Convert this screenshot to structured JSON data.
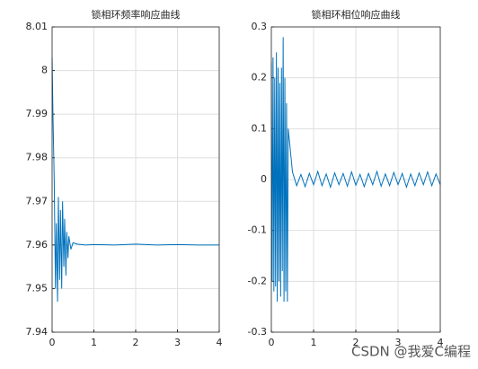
{
  "chart_data": [
    {
      "type": "line",
      "title": "锁相环频率响应曲线",
      "color": "#0072bd",
      "grid": true,
      "y_scale_label": "×10",
      "y_scale_exponent": "6",
      "x_scale_label": "×10",
      "x_scale_exponent": "4",
      "xlim": [
        0,
        4
      ],
      "xticks": [
        0,
        1,
        2,
        3,
        4
      ],
      "ylim": [
        7.94,
        8.01
      ],
      "yticks": [
        7.94,
        7.95,
        7.96,
        7.97,
        7.98,
        7.99,
        8,
        8.01
      ],
      "x": [
        0,
        0.02,
        0.05,
        0.08,
        0.1,
        0.13,
        0.15,
        0.18,
        0.2,
        0.23,
        0.25,
        0.28,
        0.3,
        0.33,
        0.35,
        0.38,
        0.4,
        0.45,
        0.5,
        0.6,
        0.8,
        1,
        1.5,
        2,
        2.5,
        3,
        3.5,
        4
      ],
      "values": [
        8.003,
        7.99,
        7.975,
        7.95,
        7.965,
        7.947,
        7.971,
        7.952,
        7.968,
        7.95,
        7.97,
        7.955,
        7.966,
        7.953,
        7.963,
        7.957,
        7.962,
        7.959,
        7.9605,
        7.9602,
        7.96,
        7.9601,
        7.96,
        7.9602,
        7.96,
        7.9601,
        7.96,
        7.96
      ]
    },
    {
      "type": "line",
      "title": "锁相环相位响应曲线",
      "color": "#0072bd",
      "grid": true,
      "x_scale_label": "×10",
      "x_scale_exponent": "4",
      "xlim": [
        0,
        4
      ],
      "xticks": [
        0,
        1,
        2,
        3,
        4
      ],
      "ylim": [
        -0.3,
        0.3
      ],
      "yticks": [
        -0.3,
        -0.2,
        -0.1,
        0,
        0.1,
        0.2,
        0.3
      ],
      "x": [
        0,
        0.02,
        0.04,
        0.06,
        0.08,
        0.1,
        0.12,
        0.14,
        0.16,
        0.18,
        0.2,
        0.22,
        0.24,
        0.26,
        0.28,
        0.3,
        0.32,
        0.34,
        0.36,
        0.38,
        0.4,
        0.5,
        0.6,
        0.7,
        0.8,
        0.9,
        1,
        1.1,
        1.2,
        1.3,
        1.4,
        1.5,
        1.6,
        1.7,
        1.8,
        1.9,
        2,
        2.1,
        2.2,
        2.3,
        2.4,
        2.5,
        2.6,
        2.7,
        2.8,
        2.9,
        3,
        3.1,
        3.2,
        3.3,
        3.4,
        3.5,
        3.6,
        3.7,
        3.8,
        3.9,
        4
      ],
      "values": [
        0.23,
        -0.2,
        0.24,
        -0.22,
        0.2,
        -0.21,
        0.25,
        -0.24,
        0.22,
        -0.2,
        0.19,
        -0.23,
        0.22,
        -0.18,
        0.28,
        -0.24,
        0.2,
        -0.22,
        0.15,
        -0.24,
        0.1,
        0.015,
        -0.012,
        0.01,
        -0.014,
        0.012,
        -0.01,
        0.016,
        -0.012,
        0.011,
        -0.015,
        0.013,
        -0.01,
        0.012,
        -0.013,
        0.015,
        -0.011,
        0.01,
        -0.014,
        0.012,
        -0.01,
        0.016,
        -0.013,
        0.011,
        -0.012,
        0.014,
        -0.01,
        0.012,
        -0.015,
        0.011,
        -0.012,
        0.013,
        -0.01,
        0.015,
        -0.012,
        0.011,
        -0.01
      ]
    }
  ],
  "watermark": "CSDN @我爱C编程"
}
